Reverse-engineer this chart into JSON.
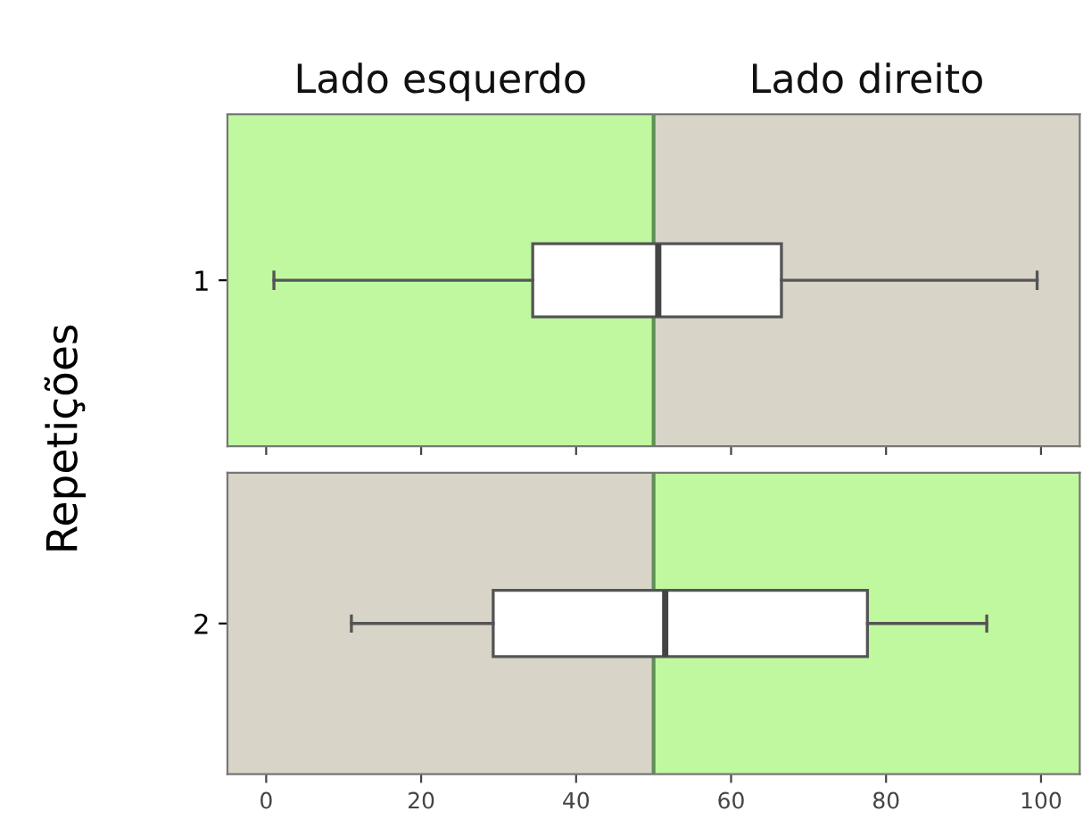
{
  "chart_data": [
    {
      "type": "box",
      "ylabel": "Repetições",
      "categories": [
        "1"
      ],
      "orientation": "horizontal",
      "xlim": [
        -5,
        105
      ],
      "xticks": [
        0,
        20,
        40,
        60,
        80,
        100
      ],
      "tick_labels": "y",
      "grid": false,
      "boxes": [
        {
          "low": 1,
          "q1": 34.4,
          "median": 50.6,
          "q3": 66.5,
          "high": 99.5
        }
      ],
      "bands": [
        {
          "axis": "x",
          "from": -5,
          "to": 50,
          "label": "Lado esquerdo",
          "color": "#c0f8a0"
        },
        {
          "axis": "x",
          "from": 50,
          "to": 105,
          "label": "Lado direito",
          "color": "#d8d5c8"
        }
      ],
      "ref_lines": [
        {
          "axis": "x",
          "value": 50,
          "color": "#5f8f55"
        }
      ]
    },
    {
      "type": "box",
      "categories": [
        "2"
      ],
      "orientation": "horizontal",
      "xlim": [
        -5,
        105
      ],
      "xticks": [
        0,
        20,
        40,
        60,
        80,
        100
      ],
      "grid": false,
      "boxes": [
        {
          "low": 11,
          "q1": 29.3,
          "median": 51.5,
          "q3": 77.6,
          "high": 93
        }
      ],
      "bands": [
        {
          "axis": "x",
          "from": -5,
          "to": 50,
          "color": "#d8d5c8"
        },
        {
          "axis": "x",
          "from": 50,
          "to": 105,
          "color": "#c0f8a0"
        }
      ],
      "ref_lines": [
        {
          "axis": "x",
          "value": 50,
          "color": "#5f8f55"
        }
      ]
    }
  ]
}
